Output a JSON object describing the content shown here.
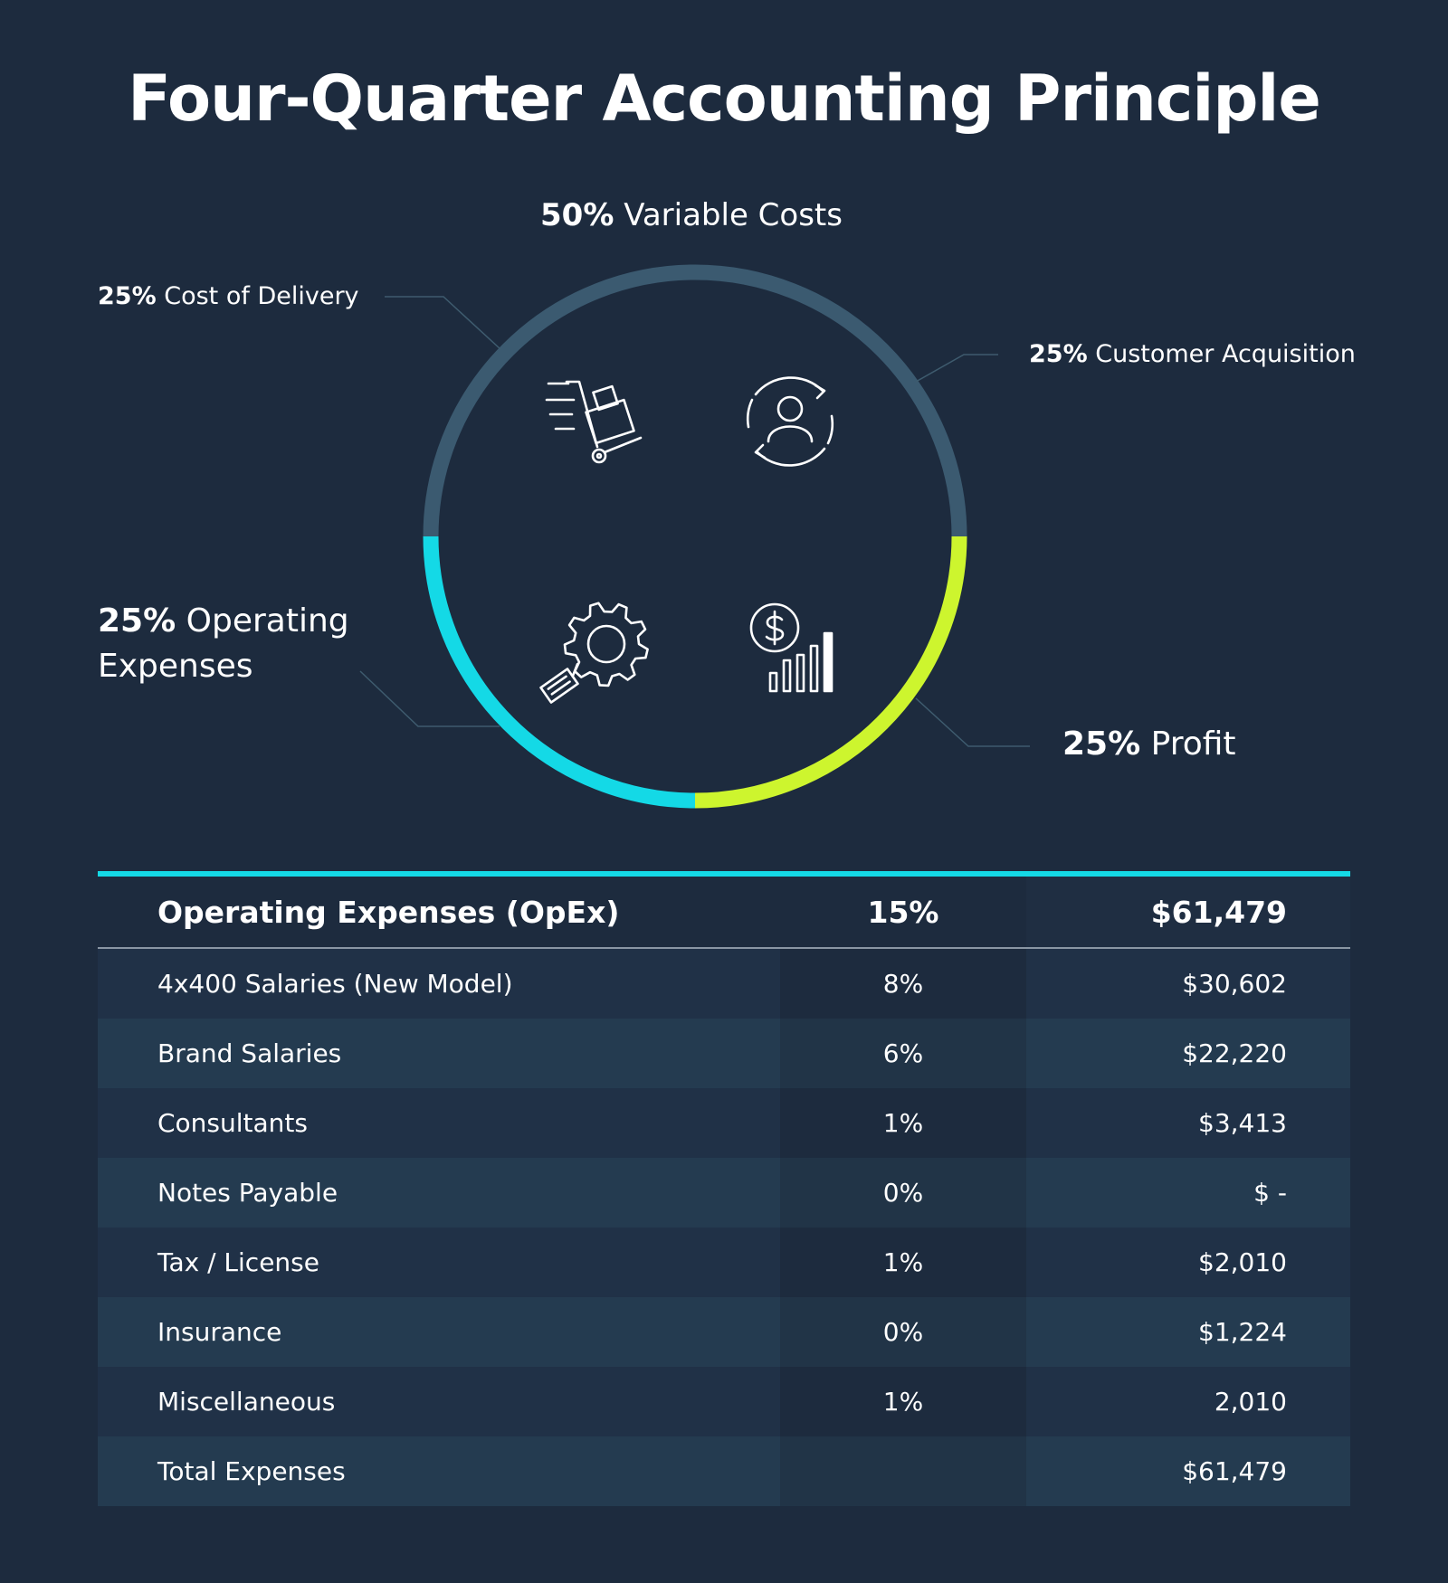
{
  "title": "Four-Quarter Accounting Principle",
  "chart_data": {
    "type": "pie",
    "title": "Four-Quarter Accounting Principle",
    "group_label": {
      "pct": "50%",
      "name": "Variable Costs"
    },
    "slices": [
      {
        "pct": "25%",
        "name": "Cost of Delivery",
        "value": 25,
        "color": "#3b5a70"
      },
      {
        "pct": "25%",
        "name": "Customer Acquisition",
        "value": 25,
        "color": "#3b5a70"
      },
      {
        "pct": "25%",
        "name": "Profit",
        "value": 25,
        "color": "#cdf52e"
      },
      {
        "pct": "25%",
        "name": "Operating Expenses",
        "value": 25,
        "color": "#14d9e6"
      }
    ],
    "icons": [
      "hand-truck-delivery-icon",
      "customer-cycle-icon",
      "gear-tag-icon",
      "dollar-bar-chart-icon"
    ]
  },
  "table": {
    "header": {
      "label": "Operating Expenses (OpEx)",
      "pct": "15%",
      "amount": "$61,479"
    },
    "rows": [
      {
        "label": "4x400 Salaries  (New Model)",
        "pct": "8%",
        "amount": "$30,602"
      },
      {
        "label": "Brand Salaries",
        "pct": "6%",
        "amount": "$22,220"
      },
      {
        "label": "Consultants",
        "pct": "1%",
        "amount": "$3,413"
      },
      {
        "label": "Notes Payable",
        "pct": "0%",
        "amount": "$ -"
      },
      {
        "label": "Tax / License",
        "pct": "1%",
        "amount": "$2,010"
      },
      {
        "label": "Insurance",
        "pct": "0%",
        "amount": "$1,224"
      },
      {
        "label": "Miscellaneous",
        "pct": "1%",
        "amount": "2,010"
      },
      {
        "label": "Total Expenses",
        "pct": "",
        "amount": "$61,479"
      }
    ],
    "accent_color": "#14d9e6"
  }
}
